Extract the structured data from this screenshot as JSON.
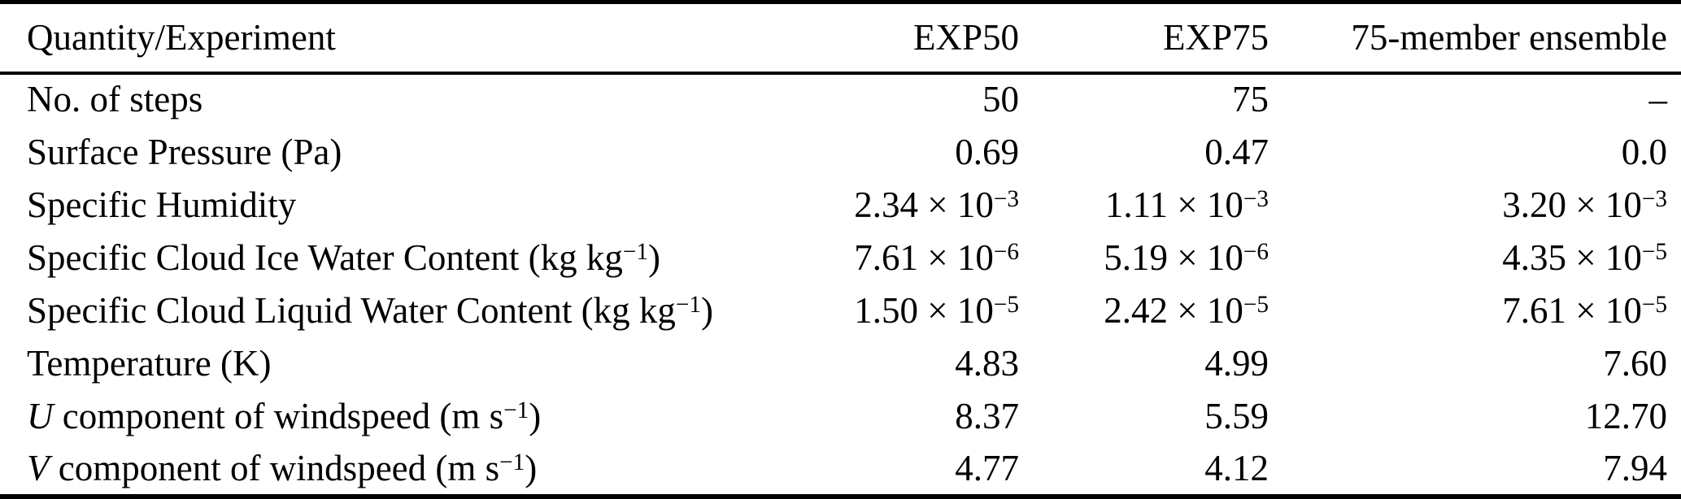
{
  "colors": {
    "text": "#000000",
    "background": "#ffffff",
    "rule": "#000000"
  },
  "table": {
    "columns": [
      {
        "label": "Quantity/Experiment"
      },
      {
        "label": "EXP50"
      },
      {
        "label": "EXP75"
      },
      {
        "label": "75-member ensemble"
      }
    ],
    "rows": [
      {
        "label": "No. of steps",
        "values": [
          "50",
          "75",
          "–"
        ]
      },
      {
        "label": "Surface Pressure (Pa)",
        "values": [
          "0.69",
          "0.47",
          "0.0"
        ]
      },
      {
        "label": "Specific Humidity",
        "values": [
          "2.34 × 10^−3^",
          "1.11 × 10^−3^",
          "3.20 × 10^−3^"
        ]
      },
      {
        "label": "Specific Cloud Ice Water Content (kg kg^−1^)",
        "values": [
          "7.61 × 10^−6^",
          "5.19 × 10^−6^",
          "4.35 × 10^−5^"
        ]
      },
      {
        "label": "Specific Cloud Liquid Water Content (kg kg^−1^)",
        "values": [
          "1.50 × 10^−5^",
          "2.42 × 10^−5^",
          "7.61 × 10^−5^"
        ]
      },
      {
        "label": "Temperature (K)",
        "values": [
          "4.83",
          "4.99",
          "7.60"
        ]
      },
      {
        "label": "*U* component of windspeed (m s^−1^)",
        "values": [
          "8.37",
          "5.59",
          "12.70"
        ]
      },
      {
        "label": "*V* component of windspeed (m s^−1^)",
        "values": [
          "4.77",
          "4.12",
          "7.94"
        ]
      }
    ]
  }
}
